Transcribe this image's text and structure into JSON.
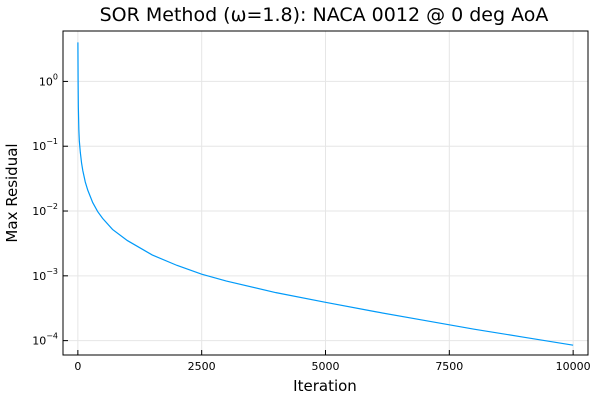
{
  "chart_data": {
    "type": "line",
    "title": "SOR Method (ω=1.8): NACA 0012 @ 0 deg AoA",
    "xlabel": "Iteration",
    "ylabel": "Max Residual",
    "xlim": [
      -300,
      10300
    ],
    "ylim": [
      6e-05,
      6
    ],
    "yscale": "log",
    "grid": true,
    "legend": "none",
    "x_ticks": [
      {
        "value": 0,
        "label": "0"
      },
      {
        "value": 2500,
        "label": "2500"
      },
      {
        "value": 5000,
        "label": "5000"
      },
      {
        "value": 7500,
        "label": "7500"
      },
      {
        "value": 10000,
        "label": "10000"
      }
    ],
    "y_ticks": [
      {
        "value": 0.0001,
        "base": "10",
        "exp": "−4"
      },
      {
        "value": 0.001,
        "base": "10",
        "exp": "−3"
      },
      {
        "value": 0.01,
        "base": "10",
        "exp": "−2"
      },
      {
        "value": 0.1,
        "base": "10",
        "exp": "−1"
      },
      {
        "value": 1,
        "base": "10",
        "exp": "0"
      }
    ],
    "series": [
      {
        "color": "#009af9",
        "x": [
          1,
          5,
          10,
          20,
          30,
          50,
          75,
          100,
          150,
          200,
          300,
          400,
          500,
          700,
          1000,
          1500,
          2000,
          2500,
          3000,
          4000,
          5000,
          6000,
          7000,
          8000,
          9000,
          10000
        ],
        "y": [
          4.0,
          1.0,
          0.4,
          0.18,
          0.12,
          0.08,
          0.055,
          0.042,
          0.028,
          0.021,
          0.0135,
          0.0098,
          0.0077,
          0.0052,
          0.0035,
          0.0021,
          0.00145,
          0.00106,
          0.00083,
          0.00055,
          0.00039,
          0.00028,
          0.000205,
          0.00015,
          0.000113,
          8.5e-05
        ]
      }
    ]
  }
}
